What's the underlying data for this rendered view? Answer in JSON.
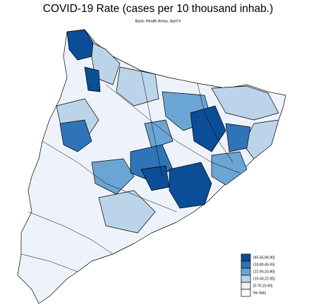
{
  "title": "COVID-19 Rate (cases per 10 thousand inhab.)",
  "subtitle": "Basic Health Areas. April 6",
  "legend": [
    {
      "label": "(45.65,96.90]",
      "color": "#0b4d96"
    },
    {
      "label": "(33.80,45.65]",
      "color": "#2f74b9"
    },
    {
      "label": "(22.65,33.80]",
      "color": "#6ba5d4"
    },
    {
      "label": "(15.60,22.65]",
      "color": "#bcd4ea"
    },
    {
      "label": "[0.70,15.60]",
      "color": "#eef3fb"
    },
    {
      "label": "No data",
      "color": "#ffffff"
    }
  ]
}
